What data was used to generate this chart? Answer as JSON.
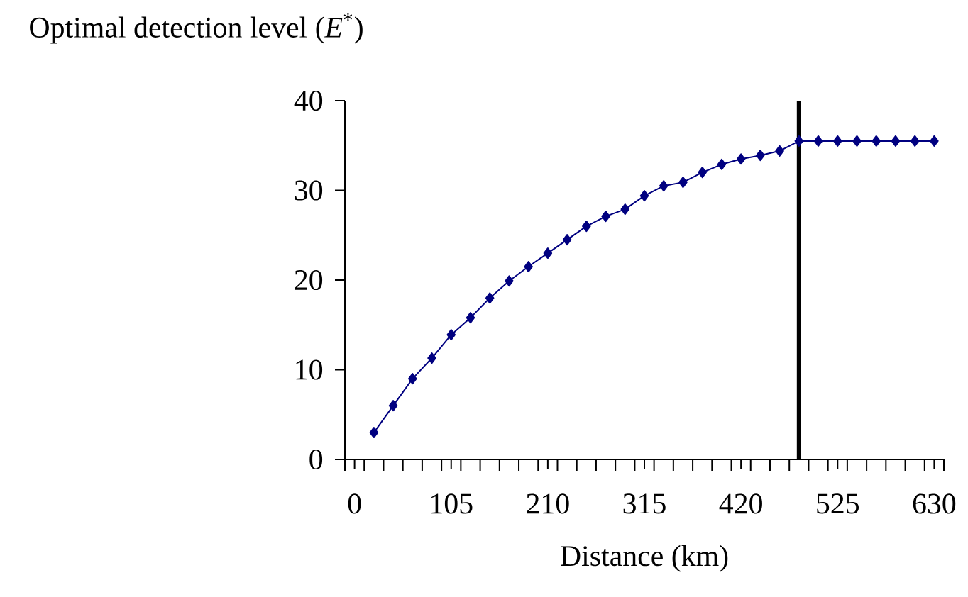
{
  "chart_data": {
    "type": "line",
    "title": "Optimal detection level (*E*$^{*}$)",
    "xlabel": "Distance (km)",
    "xlim": [
      -10.5,
      640.5
    ],
    "ylim": [
      0,
      40
    ],
    "xticks": [
      0,
      105,
      210,
      315,
      420,
      525,
      630,
      {
        "value": -10.5,
        "label": null
      },
      {
        "value": 10.5,
        "label": null
      },
      {
        "value": 31.5,
        "label": null
      },
      {
        "value": 52.5,
        "label": null
      },
      {
        "value": 73.5,
        "label": null
      },
      {
        "value": 94.5,
        "label": null
      },
      {
        "value": 115.5,
        "label": null
      },
      {
        "value": 136.5,
        "label": null
      },
      {
        "value": 157.5,
        "label": null
      },
      {
        "value": 178.5,
        "label": null
      },
      {
        "value": 199.5,
        "label": null
      },
      {
        "value": 220.5,
        "label": null
      },
      {
        "value": 241.5,
        "label": null
      },
      {
        "value": 262.5,
        "label": null
      },
      {
        "value": 283.5,
        "label": null
      },
      {
        "value": 304.5,
        "label": null
      },
      {
        "value": 325.5,
        "label": null
      },
      {
        "value": 346.5,
        "label": null
      },
      {
        "value": 367.5,
        "label": null
      },
      {
        "value": 388.5,
        "label": null
      },
      {
        "value": 409.5,
        "label": null
      },
      {
        "value": 430.5,
        "label": null
      },
      {
        "value": 451.5,
        "label": null
      },
      {
        "value": 472.5,
        "label": null
      },
      {
        "value": 493.5,
        "label": null
      },
      {
        "value": 514.5,
        "label": null
      },
      {
        "value": 535.5,
        "label": null
      },
      {
        "value": 556.5,
        "label": null
      },
      {
        "value": 577.5,
        "label": null
      },
      {
        "value": 598.5,
        "label": null
      },
      {
        "value": 619.5,
        "label": null
      },
      {
        "value": 640.5,
        "label": null
      }
    ],
    "yticks": [
      0,
      10,
      20,
      30,
      40
    ],
    "x": [
      21,
      42,
      63,
      84,
      105,
      126,
      147,
      168,
      189,
      210,
      231,
      252,
      273,
      294,
      315,
      336,
      357,
      378,
      399,
      420,
      441,
      462,
      483,
      504,
      525,
      546,
      567,
      588,
      609,
      630
    ],
    "series": [
      {
        "color": "#000080",
        "values": [
          3,
          6,
          9,
          11.3,
          13.9,
          15.8,
          18,
          19.9,
          21.5,
          23,
          24.5,
          26,
          27.1,
          27.9,
          29.4,
          30.5,
          30.9,
          32,
          32.9,
          33.5,
          33.9,
          34.4,
          35.5,
          35.5,
          35.5,
          35.5,
          35.5,
          35.5,
          35.5,
          35.5
        ]
      }
    ],
    "ref_lines": [
      {
        "axis": "x",
        "value": 483,
        "color": "#000000"
      }
    ],
    "marker": "diamond",
    "line_style": "solid",
    "grid": false
  }
}
